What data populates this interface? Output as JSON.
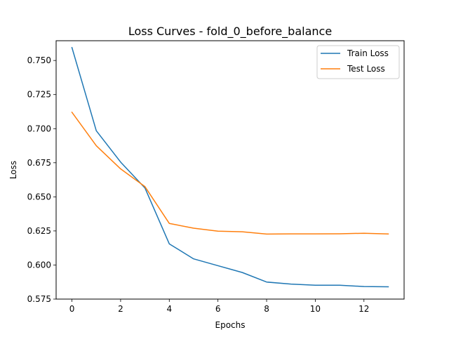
{
  "chart_data": {
    "type": "line",
    "title": "Loss Curves - fold_0_before_balance",
    "xlabel": "Epochs",
    "ylabel": "Loss",
    "xlim": [
      -0.65,
      13.65
    ],
    "ylim": [
      0.575,
      0.7645
    ],
    "xticks": [
      0,
      2,
      4,
      6,
      8,
      10,
      12
    ],
    "yticks": [
      0.575,
      0.6,
      0.625,
      0.65,
      0.675,
      0.7,
      0.725,
      0.75
    ],
    "ytick_labels": [
      "0.575",
      "0.600",
      "0.625",
      "0.650",
      "0.675",
      "0.700",
      "0.725",
      "0.750"
    ],
    "grid": false,
    "legend_position": "top-right",
    "x": [
      0,
      1,
      2,
      3,
      4,
      5,
      6,
      7,
      8,
      9,
      10,
      11,
      12,
      13
    ],
    "series": [
      {
        "name": "Train Loss",
        "color": "#1f77b4",
        "values": [
          0.7595,
          0.6985,
          0.6755,
          0.6565,
          0.6155,
          0.6045,
          0.5995,
          0.5945,
          0.5875,
          0.586,
          0.5852,
          0.5852,
          0.5842,
          0.584
        ]
      },
      {
        "name": "Test Loss",
        "color": "#ff7f0e",
        "values": [
          0.712,
          0.6875,
          0.6705,
          0.6575,
          0.6305,
          0.627,
          0.6248,
          0.6244,
          0.6227,
          0.6228,
          0.6228,
          0.6229,
          0.6233,
          0.6228
        ]
      }
    ]
  }
}
